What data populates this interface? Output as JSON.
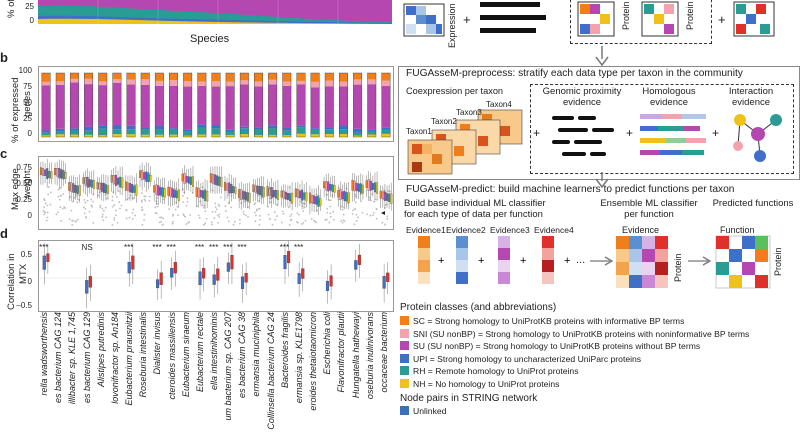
{
  "panel_a": {
    "y_label": "% of",
    "y_ticks": [
      "25",
      "0"
    ],
    "x_label": "Species"
  },
  "panel_b": {
    "letter": "b",
    "y_label": [
      "% of expressed",
      "genes"
    ],
    "y_ticks": [
      "100",
      "75",
      "50",
      "25",
      "0"
    ]
  },
  "panel_c": {
    "letter": "c",
    "y_label": [
      "Max edge",
      "weight"
    ],
    "y_ticks": [
      "0.75",
      "0.50",
      "0.25",
      "0"
    ]
  },
  "panel_d": {
    "letter": "d",
    "y_label": [
      "Correlation in",
      "MTX"
    ],
    "y_ticks": [
      "0.5",
      "0",
      "–0.5"
    ],
    "significance": [
      "***",
      "NS",
      "***",
      "***",
      "***",
      "***",
      "***",
      "***",
      "***",
      "***",
      "***"
    ]
  },
  "species": [
    "rella wadsworthensis",
    "es bacterium CAG 124",
    "illibacter sp. KLE 1,745",
    "es bacterium CAG 129",
    "Alistipes putredinis",
    "lovonifractor sp. An184",
    "Eubacterium prausnitzii",
    "Roseburia intestinalis",
    "Dialister invisus",
    "cteroides massiliensis",
    "Eubacterium siraeum",
    "Eubacterium rectale",
    "ella intestinihominis",
    "um bacterium sp. CAG 207",
    "es bacterium CAG 38",
    "ermansia muciniphila",
    "Collinsella bacterium CAG 24",
    "Bacteroides fragilis",
    "ermansia sp. KLE1798",
    "eroides thetaiotaomicron",
    "Escherichia coli",
    "Flavonifractor plautii",
    "Hungatella hathewayi",
    "oseburia inulinivorans",
    "occaceae bacterium"
  ],
  "right": {
    "expression": "Expression",
    "protein_1": "Protein",
    "protein_2": "Protein",
    "plus_1": "+",
    "plus_2": "+",
    "preprocess_title": "FUGAsseM-preprocess: stratify each data type per taxon in the community",
    "coexp_title": "Coexpression per taxon",
    "genomic_title": [
      "Genomic proximity",
      "evidence"
    ],
    "homol_title": [
      "Homologous",
      "evidence"
    ],
    "interact_title": [
      "Interaction",
      "evidence"
    ],
    "taxa": [
      "Taxon1",
      "Taxon2",
      "Taxon3",
      "Taxon4"
    ],
    "predict_title": "FUGAsseM-predict: build machine learners to predict functions per taxon",
    "base_title": [
      "Build base individual ML classifier",
      "for each type of data per function"
    ],
    "ensemble_title": [
      "Ensemble ML classifier",
      "per function"
    ],
    "predicted_title": "Predicted functions",
    "evidences": [
      "Evidence1",
      "Evidence2",
      "Evidence3",
      "Evidence4"
    ],
    "ellipsis": "...",
    "evidence_label": "Evidence",
    "protein_3": "Protein",
    "function_label": "Function",
    "protein_4": "Protein"
  },
  "legend": {
    "title": "Protein classes (and abbreviations)",
    "items": [
      {
        "text": "SC = Strong homology to UniProtKB proteins with informative BP terms",
        "color": "#f07f1b"
      },
      {
        "text": "SNI (SU nonBP) = Strong homology to UniProtKB proteins with noninformative BP terms",
        "color": "#f2a3ad"
      },
      {
        "text": "SU (SU nonBP) = Strong homology to UniProtKB proteins without BP terms",
        "color": "#b548b0"
      },
      {
        "text": "UPI = Strong homology to uncharacterized UniParc proteins",
        "color": "#3f6fc8"
      },
      {
        "text": "RH = Remote homology to UniProt proteins",
        "color": "#2a9c94"
      },
      {
        "text": "NH = No homology to UniProt proteins",
        "color": "#efc219"
      }
    ],
    "node_title": "Node pairs in STRING network",
    "node_items": [
      {
        "text": "Unlinked",
        "color": "#3b6fb8"
      }
    ]
  },
  "colors": {
    "SC": "#f07f1b",
    "SNI": "#f2a3ad",
    "SU": "#b548b0",
    "UPI": "#3f6fc8",
    "RH": "#2a9c94",
    "NH": "#efc219"
  }
}
